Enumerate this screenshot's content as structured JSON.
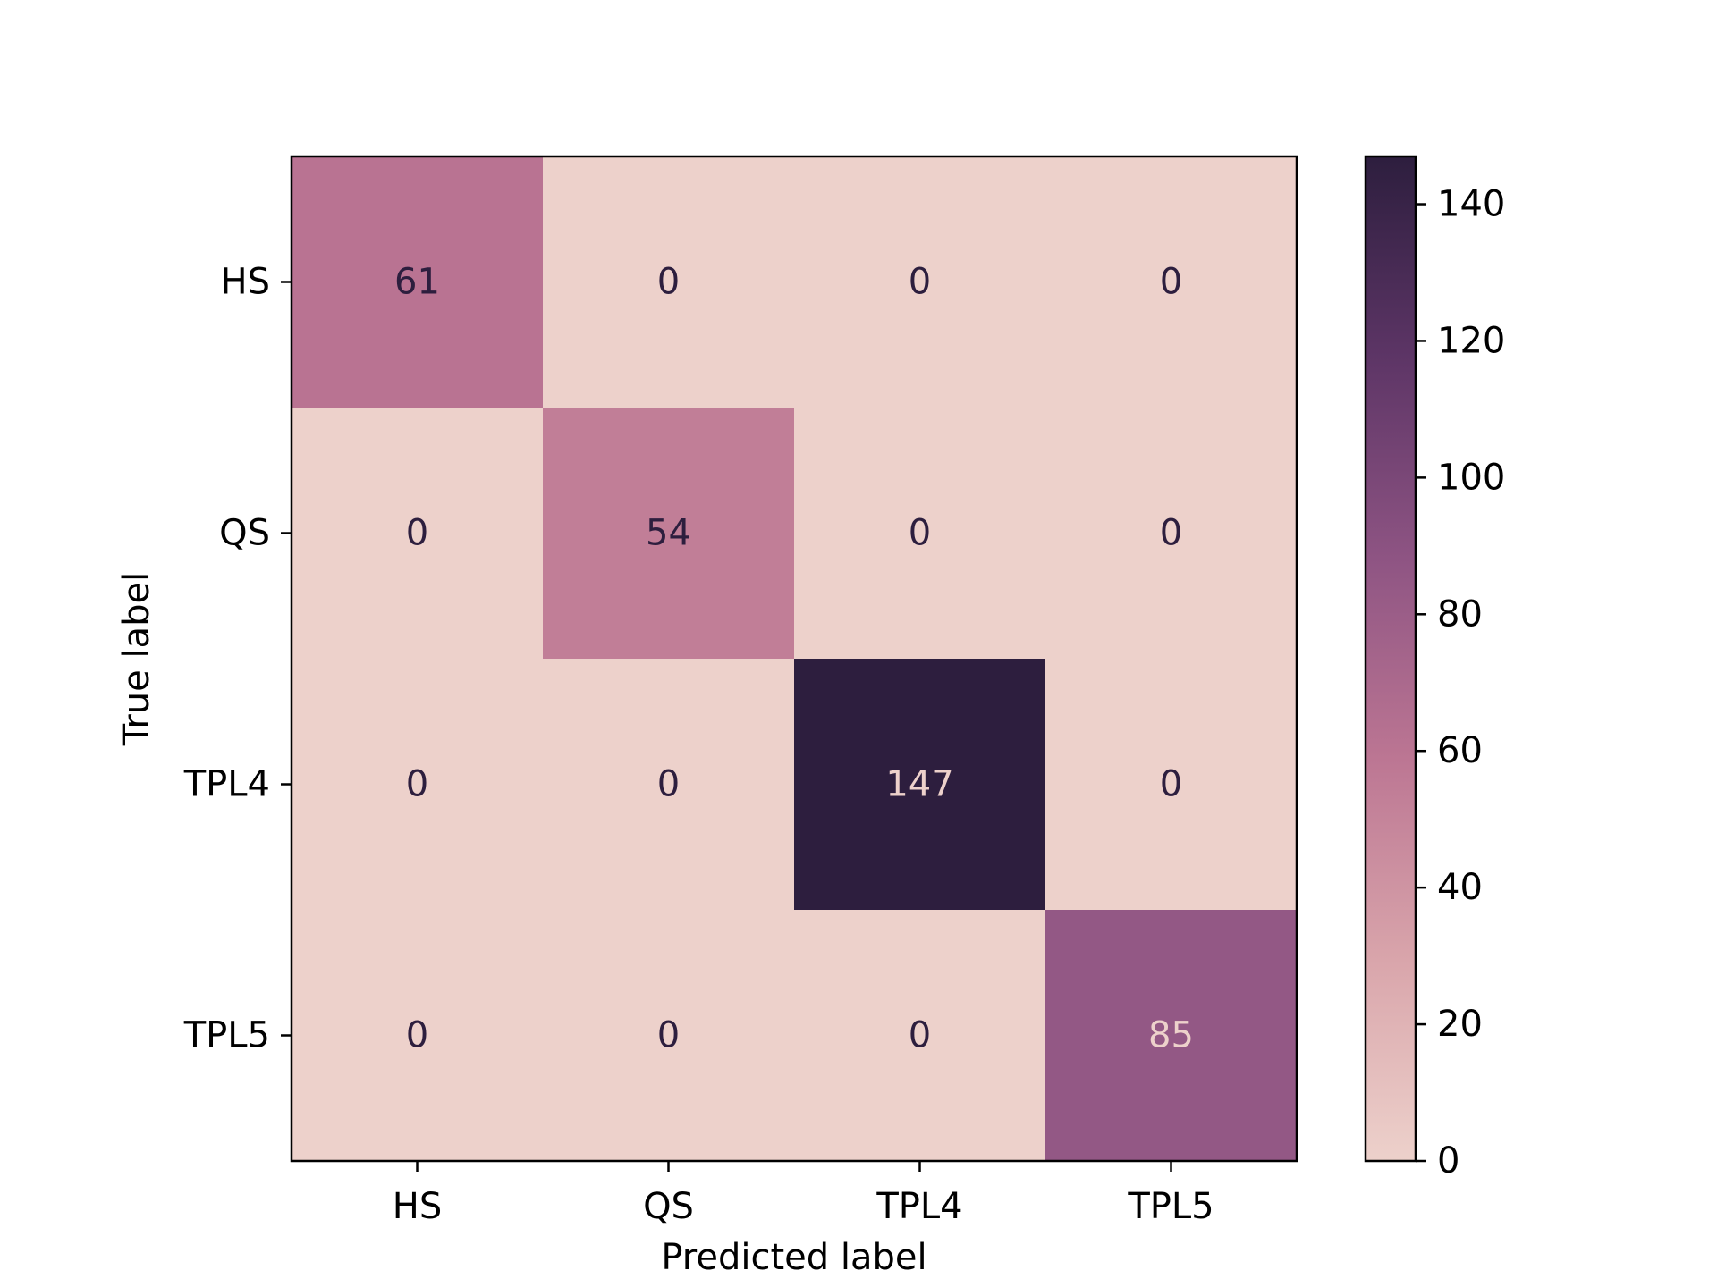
{
  "chart_data": {
    "type": "heatmap",
    "title": "",
    "xlabel": "Predicted label",
    "ylabel": "True label",
    "x_categories": [
      "HS",
      "QS",
      "TPL4",
      "TPL5"
    ],
    "y_categories": [
      "HS",
      "QS",
      "TPL4",
      "TPL5"
    ],
    "values": [
      [
        61,
        0,
        0,
        0
      ],
      [
        0,
        54,
        0,
        0
      ],
      [
        0,
        0,
        147,
        0
      ],
      [
        0,
        0,
        0,
        85
      ]
    ],
    "colorbar": {
      "range": [
        0,
        147
      ],
      "ticks": [
        0,
        20,
        40,
        60,
        80,
        100,
        120,
        140
      ],
      "colors": [
        "#edd1cb",
        "#d9a5ab",
        "#bc7693",
        "#8e5483",
        "#5d3566",
        "#2d1e3e"
      ]
    },
    "annotation_colors": {
      "dark": "#2d1e3e",
      "light": "#edd1cb"
    }
  }
}
